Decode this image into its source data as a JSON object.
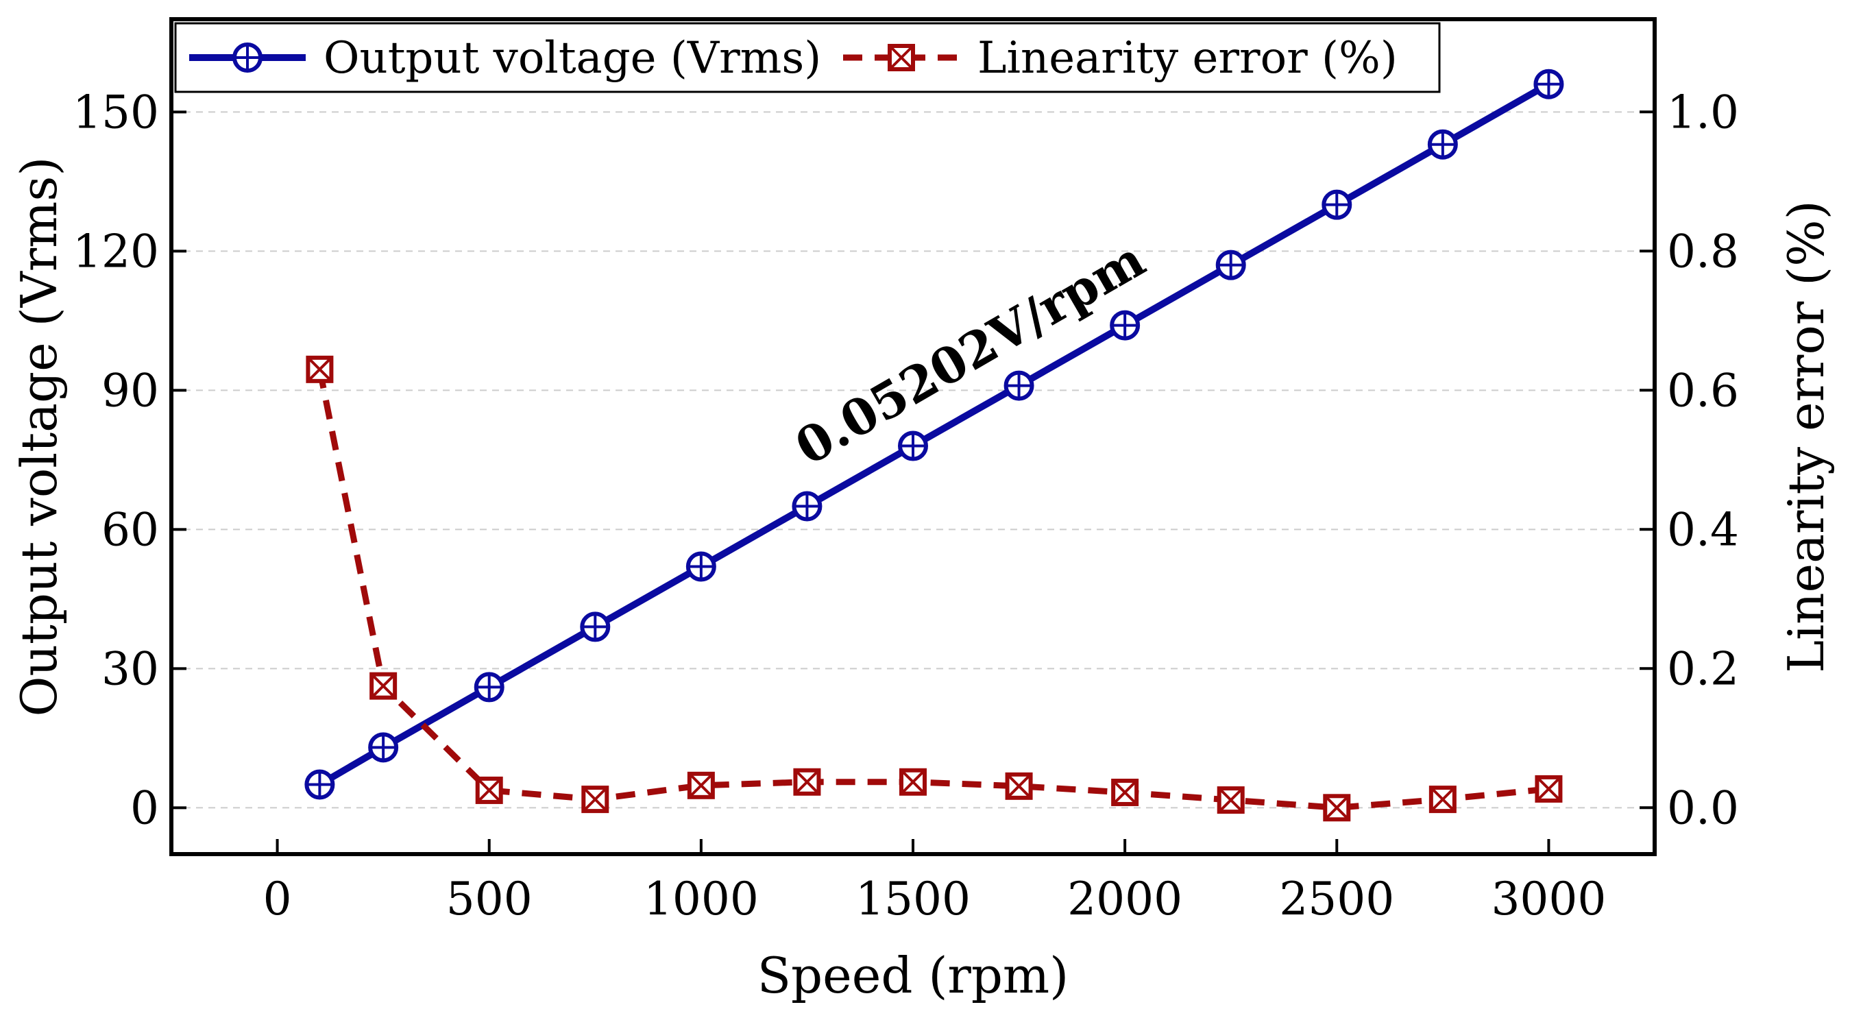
{
  "chart_data": {
    "type": "line",
    "xlabel": "Speed (rpm)",
    "ylabel_left": "Output voltage (Vrms)",
    "ylabel_right": "Linearity error (%)",
    "xlim": [
      -250,
      3250
    ],
    "ylim_left": [
      -10,
      170
    ],
    "ylim_right": [
      -0.0667,
      1.1333
    ],
    "xticks": [
      0,
      500,
      1000,
      1500,
      2000,
      2500,
      3000
    ],
    "xtick_labels": [
      "0",
      "500",
      "1000",
      "1500",
      "2000",
      "2500",
      "3000"
    ],
    "yticks_left": [
      0,
      30,
      60,
      90,
      120,
      150
    ],
    "ytick_labels_left": [
      "0",
      "30",
      "60",
      "90",
      "120",
      "150"
    ],
    "yticks_right": [
      0.0,
      0.2,
      0.4,
      0.6,
      0.8,
      1.0
    ],
    "ytick_labels_right": [
      "0.0",
      "0.2",
      "0.4",
      "0.6",
      "0.8",
      "1.0"
    ],
    "grid": "horizontal dashed",
    "legend_position": "top-left",
    "annotation": "0.05202V/rpm",
    "x": [
      100,
      250,
      500,
      750,
      1000,
      1250,
      1500,
      1750,
      2000,
      2250,
      2500,
      2750,
      3000
    ],
    "series": [
      {
        "name": "Output voltage (Vrms)",
        "axis": "left",
        "color": "#0a0aa0",
        "marker": "circle-plus",
        "linestyle": "solid",
        "values": [
          5,
          13,
          26,
          39,
          52,
          65,
          78,
          91,
          104,
          117,
          130,
          143,
          156
        ]
      },
      {
        "name": "Linearity error (%)",
        "axis": "right",
        "color": "#a00a0a",
        "marker": "square-x",
        "linestyle": "dashed",
        "values": [
          0.63,
          0.175,
          0.025,
          0.012,
          0.032,
          0.037,
          0.037,
          0.031,
          0.022,
          0.011,
          0.0,
          0.012,
          0.027
        ]
      }
    ]
  }
}
